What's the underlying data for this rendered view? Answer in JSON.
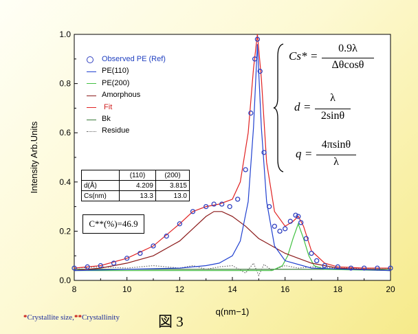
{
  "chart_data": {
    "type": "line",
    "xlabel": "q(nm−1)",
    "ylabel": "Intensity Arb.Units",
    "xlim": [
      8,
      20
    ],
    "ylim": [
      0,
      1.0
    ],
    "x_ticks": [
      "8",
      "10",
      "12",
      "14",
      "16",
      "18",
      "20"
    ],
    "y_ticks": [
      "0.0",
      "0.2",
      "0.4",
      "0.6",
      "0.8",
      "1.0"
    ],
    "legend_position": "top-left",
    "series": [
      {
        "name": "Observed PE (Ref)",
        "color": "#3040c0",
        "marker": "circle",
        "x": [
          8.0,
          8.5,
          9.0,
          9.5,
          10.0,
          10.5,
          11.0,
          11.5,
          12.0,
          12.5,
          13.0,
          13.3,
          13.6,
          13.9,
          14.2,
          14.5,
          14.7,
          14.85,
          14.95,
          15.05,
          15.2,
          15.4,
          15.6,
          15.8,
          16.0,
          16.2,
          16.4,
          16.5,
          16.6,
          16.8,
          17.0,
          17.2,
          17.5,
          18.0,
          18.5,
          19.0,
          19.5,
          20.0
        ],
        "y": [
          0.05,
          0.055,
          0.06,
          0.07,
          0.09,
          0.11,
          0.14,
          0.18,
          0.23,
          0.28,
          0.3,
          0.31,
          0.31,
          0.3,
          0.33,
          0.45,
          0.68,
          0.9,
          0.98,
          0.85,
          0.52,
          0.3,
          0.22,
          0.2,
          0.21,
          0.24,
          0.265,
          0.26,
          0.235,
          0.17,
          0.11,
          0.08,
          0.06,
          0.055,
          0.05,
          0.05,
          0.05,
          0.05
        ]
      },
      {
        "name": "PE(110)",
        "color": "#2040d0",
        "x": [
          8.0,
          10.0,
          12.0,
          13.0,
          13.5,
          14.0,
          14.3,
          14.6,
          14.8,
          14.95,
          15.1,
          15.3,
          15.6,
          16.0,
          17.0,
          20.0
        ],
        "y": [
          0.04,
          0.045,
          0.05,
          0.06,
          0.07,
          0.1,
          0.16,
          0.32,
          0.62,
          0.96,
          0.62,
          0.32,
          0.14,
          0.08,
          0.05,
          0.04
        ]
      },
      {
        "name": "PE(200)",
        "color": "#40c040",
        "x": [
          8.0,
          15.5,
          15.9,
          16.1,
          16.3,
          16.5,
          16.7,
          16.9,
          17.1,
          17.5,
          20.0
        ],
        "y": [
          0.04,
          0.04,
          0.06,
          0.1,
          0.17,
          0.23,
          0.17,
          0.1,
          0.06,
          0.045,
          0.04
        ]
      },
      {
        "name": "Amorphous",
        "color": "#8b1a1a",
        "x": [
          8.0,
          9.0,
          10.0,
          11.0,
          12.0,
          12.5,
          13.0,
          13.3,
          13.6,
          14.0,
          14.5,
          15.0,
          15.5,
          16.0,
          16.5,
          17.0,
          17.5,
          18.0,
          19.0,
          20.0
        ],
        "y": [
          0.04,
          0.05,
          0.07,
          0.1,
          0.16,
          0.21,
          0.26,
          0.28,
          0.28,
          0.26,
          0.22,
          0.17,
          0.14,
          0.11,
          0.09,
          0.07,
          0.06,
          0.05,
          0.045,
          0.04
        ]
      },
      {
        "name": " Fit",
        "color": "#e02020",
        "x": [
          8.0,
          9.0,
          10.0,
          11.0,
          12.0,
          12.5,
          13.0,
          13.5,
          14.0,
          14.3,
          14.6,
          14.8,
          14.95,
          15.1,
          15.3,
          15.6,
          16.0,
          16.3,
          16.5,
          16.7,
          17.0,
          17.5,
          18.0,
          19.0,
          20.0
        ],
        "y": [
          0.05,
          0.06,
          0.09,
          0.14,
          0.23,
          0.28,
          0.3,
          0.31,
          0.33,
          0.4,
          0.6,
          0.86,
          1.0,
          0.82,
          0.48,
          0.28,
          0.22,
          0.24,
          0.26,
          0.22,
          0.12,
          0.07,
          0.055,
          0.05,
          0.05
        ]
      },
      {
        "name": "Bk",
        "color": "#3a7a3a",
        "x": [
          8.0,
          20.0
        ],
        "y": [
          0.045,
          0.045
        ]
      },
      {
        "name": "Residue",
        "color": "#606060",
        "dash": "dotted",
        "x": [
          8.0,
          9.0,
          10.0,
          11.0,
          12.0,
          12.5,
          13.0,
          13.5,
          14.0,
          14.5,
          14.8,
          15.0,
          15.2,
          15.5,
          16.0,
          16.5,
          17.0,
          18.0,
          19.0,
          20.0
        ],
        "y": [
          0.05,
          0.055,
          0.05,
          0.06,
          0.05,
          0.06,
          0.045,
          0.055,
          0.06,
          0.03,
          0.07,
          0.02,
          0.065,
          0.04,
          0.06,
          0.05,
          0.055,
          0.05,
          0.05,
          0.05
        ]
      }
    ]
  },
  "table": {
    "headers": [
      "",
      "(110)",
      "(200)"
    ],
    "rows": [
      [
        "d(Å)",
        "4.209",
        "3.815"
      ],
      [
        "Cs(nm)",
        "13.3",
        "13.0"
      ]
    ]
  },
  "crystallinity": "C**(%)=46.9",
  "formulas": {
    "cs_lhs": "Cs*",
    "cs_num": "0.9λ",
    "cs_den": "Δθcosθ",
    "d_lhs": "d",
    "d_num": "λ",
    "d_den": "2sinθ",
    "q_lhs": "q",
    "q_num": "4πsinθ",
    "q_den": "λ",
    "equals": "="
  },
  "footnote": {
    "mark1": "*",
    "text1": "Crystallite size,",
    "mark2": "**",
    "text2": "Crystallinity"
  },
  "figure_label": "図 3"
}
